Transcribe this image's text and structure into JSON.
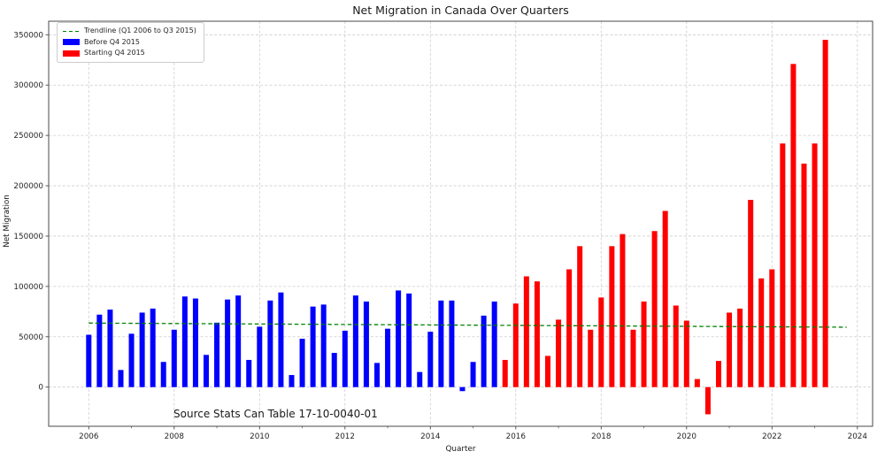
{
  "chart_data": {
    "type": "bar",
    "title": "Net Migration in Canada Over Quarters",
    "xlabel": "Quarter",
    "ylabel": "Net Migration",
    "annotation": "Source Stats Can Table 17-10-0040-01",
    "grid": true,
    "grid_color": "#cccccc",
    "text_color": "#262626",
    "legend_position": "upper-left",
    "ylim": [
      -40000,
      363000
    ],
    "yticks": [
      0,
      50000,
      100000,
      150000,
      200000,
      250000,
      300000,
      350000
    ],
    "xticks_major_years": [
      2006,
      2008,
      2010,
      2012,
      2014,
      2016,
      2018,
      2020,
      2022,
      2024
    ],
    "xticks_minor_years": [
      2007,
      2009,
      2011,
      2013,
      2015,
      2017,
      2019,
      2021,
      2023
    ],
    "series": [
      {
        "name": "Before Q4 2015",
        "color": "#0000ff",
        "start_quarter": "2006Q1",
        "quarters": [
          "2006Q1",
          "2006Q2",
          "2006Q3",
          "2006Q4",
          "2007Q1",
          "2007Q2",
          "2007Q3",
          "2007Q4",
          "2008Q1",
          "2008Q2",
          "2008Q3",
          "2008Q4",
          "2009Q1",
          "2009Q2",
          "2009Q3",
          "2009Q4",
          "2010Q1",
          "2010Q2",
          "2010Q3",
          "2010Q4",
          "2011Q1",
          "2011Q2",
          "2011Q3",
          "2011Q4",
          "2012Q1",
          "2012Q2",
          "2012Q3",
          "2012Q4",
          "2013Q1",
          "2013Q2",
          "2013Q3",
          "2013Q4",
          "2014Q1",
          "2014Q2",
          "2014Q3",
          "2014Q4",
          "2015Q1",
          "2015Q2",
          "2015Q3"
        ],
        "values": [
          52000,
          72000,
          77000,
          17000,
          53000,
          74000,
          78000,
          25000,
          57000,
          90000,
          88000,
          32000,
          64000,
          87000,
          91000,
          27000,
          60000,
          86000,
          94000,
          12000,
          48000,
          80000,
          82000,
          34000,
          56000,
          91000,
          85000,
          24000,
          58000,
          96000,
          93000,
          15000,
          55000,
          86000,
          86000,
          -4000,
          25000,
          71000,
          85000
        ]
      },
      {
        "name": "Starting Q4 2015",
        "color": "#ff0000",
        "start_quarter": "2015Q4",
        "quarters": [
          "2015Q4",
          "2016Q1",
          "2016Q2",
          "2016Q3",
          "2016Q4",
          "2017Q1",
          "2017Q2",
          "2017Q3",
          "2017Q4",
          "2018Q1",
          "2018Q2",
          "2018Q3",
          "2018Q4",
          "2019Q1",
          "2019Q2",
          "2019Q3",
          "2019Q4",
          "2020Q1",
          "2020Q2",
          "2020Q3",
          "2020Q4",
          "2021Q1",
          "2021Q2",
          "2021Q3",
          "2021Q4",
          "2022Q1",
          "2022Q2",
          "2022Q3",
          "2022Q4",
          "2023Q1",
          "2023Q2"
        ],
        "values": [
          27000,
          83000,
          110000,
          105000,
          31000,
          67000,
          117000,
          140000,
          57000,
          89000,
          140000,
          152000,
          57000,
          85000,
          155000,
          175000,
          81000,
          66000,
          8000,
          -27000,
          26000,
          74000,
          78000,
          186000,
          108000,
          117000,
          242000,
          321000,
          222000,
          242000,
          345000
        ]
      }
    ],
    "trendline": {
      "label": "Trendline (Q1 2006 to Q3 2015)",
      "color": "#008000",
      "linestyle": "dashed",
      "start_quarter": "2006Q1",
      "start_value": 63600,
      "end_quarter": "2023Q4",
      "end_value": 59500
    },
    "legend": {
      "entries": [
        {
          "label": "Trendline (Q1 2006 to Q3 2015)",
          "swatch": "dashed-line"
        },
        {
          "label": "Before Q4 2015",
          "swatch": "patch"
        },
        {
          "label": "Starting Q4 2015",
          "swatch": "patch"
        }
      ]
    }
  }
}
